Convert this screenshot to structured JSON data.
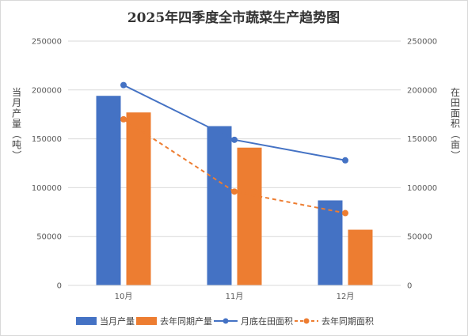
{
  "chart_data": {
    "type": "bar",
    "title": "2025年四季度全市蔬菜生产趋势图",
    "categories": [
      "10月",
      "11月",
      "12月"
    ],
    "y_left": {
      "label": "当月产量（吨）",
      "min": 0,
      "max": 250000,
      "ticks": [
        "0",
        "50000",
        "100000",
        "150000",
        "200000",
        "250000"
      ]
    },
    "y_right": {
      "label": "在田面积（亩）",
      "min": 0,
      "max": 250000,
      "ticks": [
        "0",
        "50000",
        "100000",
        "150000",
        "200000",
        "250000"
      ]
    },
    "series": [
      {
        "name": "当月产量",
        "kind": "bar",
        "axis": "left",
        "color": "#4472C4",
        "values": [
          194000,
          163000,
          87000
        ]
      },
      {
        "name": "去年同期产量",
        "kind": "bar",
        "axis": "left",
        "color": "#ED7D31",
        "values": [
          177000,
          141000,
          57000
        ]
      },
      {
        "name": "月底在田面积",
        "kind": "line",
        "style": "solid",
        "axis": "right",
        "color": "#4472C4",
        "values": [
          205000,
          149000,
          128000
        ]
      },
      {
        "name": "去年同期面积",
        "kind": "line",
        "style": "dashed",
        "axis": "right",
        "color": "#ED7D31",
        "values": [
          170000,
          96000,
          74000
        ]
      }
    ],
    "grid": true,
    "legend_position": "bottom"
  }
}
